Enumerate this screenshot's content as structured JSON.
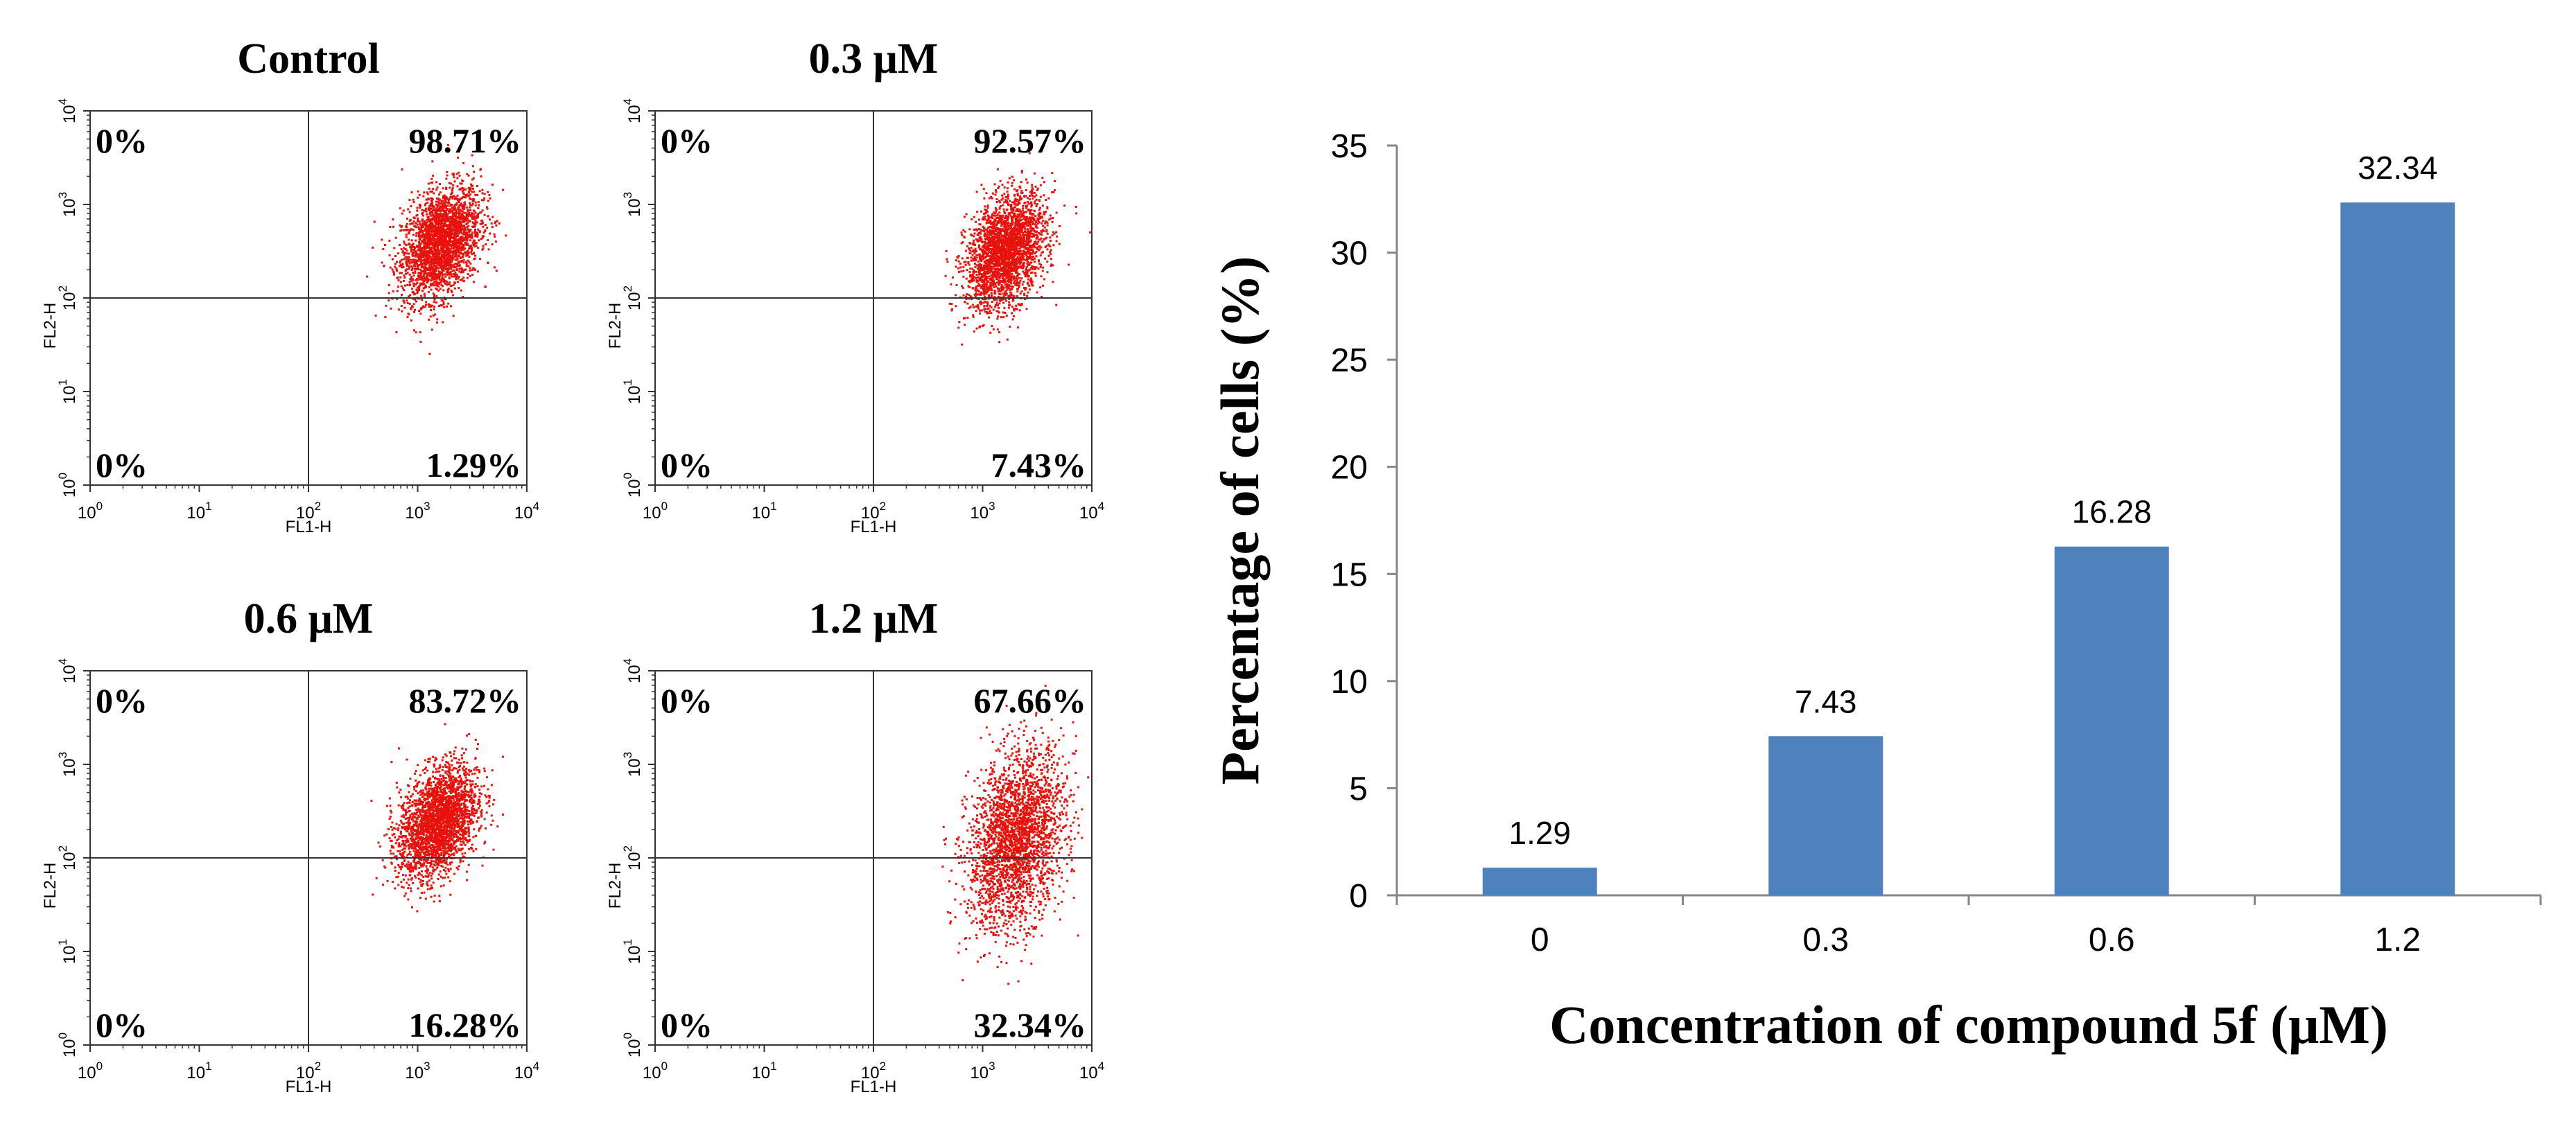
{
  "colors": {
    "dots": "#e8120c",
    "bar": "#4f81bd",
    "axis": "#868686",
    "gate": "#333333",
    "text": "#000000"
  },
  "chart_data": [
    {
      "type": "scatter",
      "title": "Control",
      "xlabel": "FL1-H",
      "ylabel": "FL2-H",
      "xlim": [
        1,
        10000
      ],
      "ylim": [
        1,
        10000
      ],
      "log_scale": true,
      "quadrant_gate": {
        "x": 100,
        "y": 100
      },
      "quadrants": {
        "upper_left": "0%",
        "upper_right": "98.71%",
        "lower_left": "0%",
        "lower_right": "1.29%"
      },
      "population_center": {
        "x": 1600,
        "y": 400
      }
    },
    {
      "type": "scatter",
      "title": "0.3 μM",
      "xlabel": "FL1-H",
      "ylabel": "FL2-H",
      "xlim": [
        1,
        10000
      ],
      "ylim": [
        1,
        10000
      ],
      "log_scale": true,
      "quadrant_gate": {
        "x": 100,
        "y": 100
      },
      "quadrants": {
        "upper_left": "0%",
        "upper_right": "92.57%",
        "lower_left": "0%",
        "lower_right": "7.43%"
      },
      "population_center": {
        "x": 1600,
        "y": 320
      }
    },
    {
      "type": "scatter",
      "title": "0.6 μM",
      "xlabel": "FL1-H",
      "ylabel": "FL2-H",
      "xlim": [
        1,
        10000
      ],
      "ylim": [
        1,
        10000
      ],
      "log_scale": true,
      "quadrant_gate": {
        "x": 100,
        "y": 100
      },
      "quadrants": {
        "upper_left": "0%",
        "upper_right": "83.72%",
        "lower_left": "0%",
        "lower_right": "16.28%"
      },
      "population_center": {
        "x": 1500,
        "y": 250
      }
    },
    {
      "type": "scatter",
      "title": "1.2 μM",
      "xlabel": "FL1-H",
      "ylabel": "FL2-H",
      "xlim": [
        1,
        10000
      ],
      "ylim": [
        1,
        10000
      ],
      "log_scale": true,
      "quadrant_gate": {
        "x": 100,
        "y": 100
      },
      "quadrants": {
        "upper_left": "0%",
        "upper_right": "67.66%",
        "lower_left": "0%",
        "lower_right": "32.34%"
      },
      "population_center": {
        "x": 2000,
        "y": 160
      }
    },
    {
      "type": "bar",
      "title": "",
      "categories": [
        "0",
        "0.3",
        "0.6",
        "1.2"
      ],
      "values": [
        1.29,
        7.43,
        16.28,
        32.34
      ],
      "value_labels": [
        "1.29",
        "7.43",
        "16.28",
        "32.34"
      ],
      "xlabel": "Concentration of compound 5f (μM)",
      "ylabel": "Percentage of cells (%)",
      "ylim": [
        0,
        35
      ],
      "yticks": [
        0,
        5,
        10,
        15,
        20,
        25,
        30,
        35
      ],
      "ytick_labels": [
        "0",
        "5",
        "10",
        "15",
        "20",
        "25",
        "30",
        "35"
      ],
      "grid": false,
      "legend": "none"
    }
  ]
}
